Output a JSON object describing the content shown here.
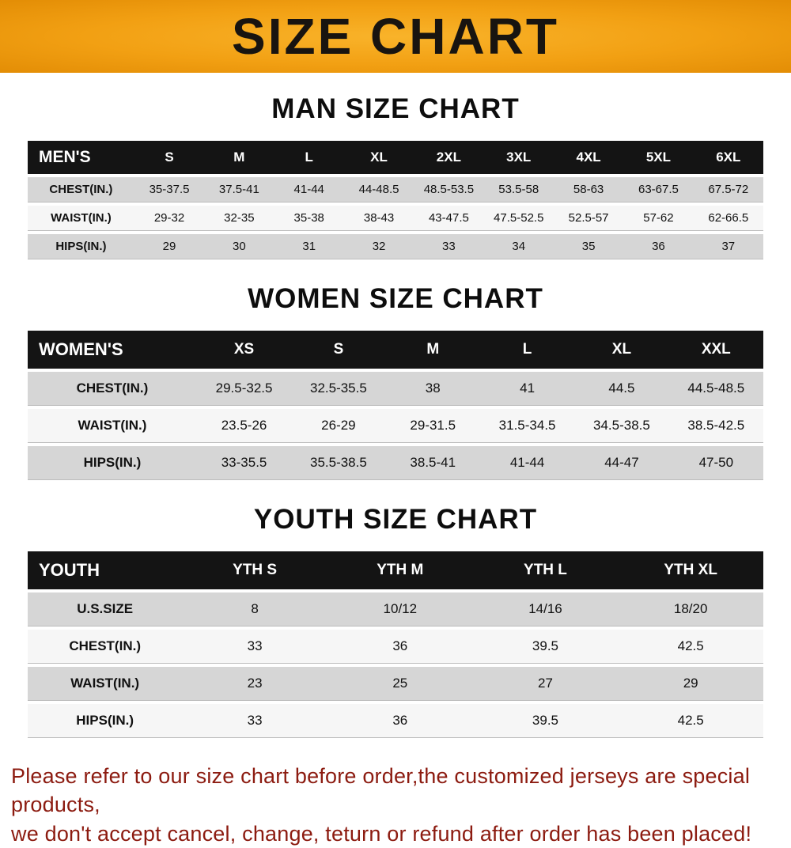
{
  "banner": {
    "title": "SIZE CHART"
  },
  "sections": [
    {
      "heading": "MAN SIZE CHART",
      "table": {
        "header": [
          "MEN'S",
          "S",
          "M",
          "L",
          "XL",
          "2XL",
          "3XL",
          "4XL",
          "5XL",
          "6XL"
        ],
        "rows": [
          [
            "CHEST(IN.)",
            "35-37.5",
            "37.5-41",
            "41-44",
            "44-48.5",
            "48.5-53.5",
            "53.5-58",
            "58-63",
            "63-67.5",
            "67.5-72"
          ],
          [
            "WAIST(IN.)",
            "29-32",
            "32-35",
            "35-38",
            "38-43",
            "43-47.5",
            "47.5-52.5",
            "52.5-57",
            "57-62",
            "62-66.5"
          ],
          [
            "HIPS(IN.)",
            "29",
            "30",
            "31",
            "32",
            "33",
            "34",
            "35",
            "36",
            "37"
          ]
        ]
      }
    },
    {
      "heading": "WOMEN SIZE CHART",
      "table": {
        "header": [
          "WOMEN'S",
          "XS",
          "S",
          "M",
          "L",
          "XL",
          "XXL"
        ],
        "rows": [
          [
            "CHEST(IN.)",
            "29.5-32.5",
            "32.5-35.5",
            "38",
            "41",
            "44.5",
            "44.5-48.5"
          ],
          [
            "WAIST(IN.)",
            "23.5-26",
            "26-29",
            "29-31.5",
            "31.5-34.5",
            "34.5-38.5",
            "38.5-42.5"
          ],
          [
            "HIPS(IN.)",
            "33-35.5",
            "35.5-38.5",
            "38.5-41",
            "41-44",
            "44-47",
            "47-50"
          ]
        ]
      }
    },
    {
      "heading": "YOUTH SIZE CHART",
      "table": {
        "header": [
          "YOUTH",
          "YTH S",
          "YTH M",
          "YTH L",
          "YTH XL"
        ],
        "rows": [
          [
            "U.S.SIZE",
            "8",
            "10/12",
            "14/16",
            "18/20"
          ],
          [
            "CHEST(IN.)",
            "33",
            "36",
            "39.5",
            "42.5"
          ],
          [
            "WAIST(IN.)",
            "23",
            "25",
            "27",
            "29"
          ],
          [
            "HIPS(IN.)",
            "33",
            "36",
            "39.5",
            "42.5"
          ]
        ]
      }
    }
  ],
  "footer": {
    "line1": "Please refer to our size chart before order,the customized jerseys are special products,",
    "line2": "we don't accept cancel, change, teturn or refund after order has been placed!"
  },
  "colors": {
    "banner_orange": "#F2A013",
    "header_black": "#141414",
    "row_gray": "#D6D6D6",
    "footer_red": "#8C1B10"
  }
}
